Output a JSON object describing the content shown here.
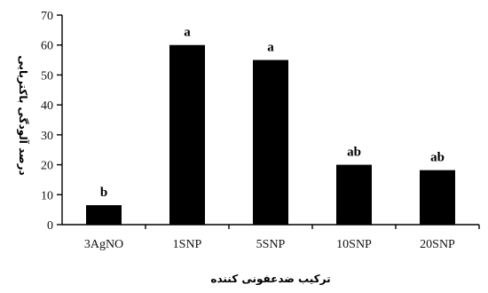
{
  "chart_data": {
    "type": "bar",
    "categories": [
      "3AgNO",
      "1SNP",
      "5SNP",
      "10SNP",
      "20SNP"
    ],
    "values": [
      6.5,
      60,
      55,
      20,
      18.2
    ],
    "significance_letters": [
      "b",
      "a",
      "a",
      "ab",
      "ab"
    ],
    "title": "",
    "xlabel": "ترکیب ضدعفونی کننده",
    "ylabel": "درصد آلودگی باکتریایی",
    "ylim": [
      0,
      70
    ],
    "yticks": [
      "0",
      "10",
      "20",
      "30",
      "40",
      "50",
      "60",
      "70"
    ],
    "grid": false,
    "legend": "none",
    "bar_color": "#000000"
  }
}
